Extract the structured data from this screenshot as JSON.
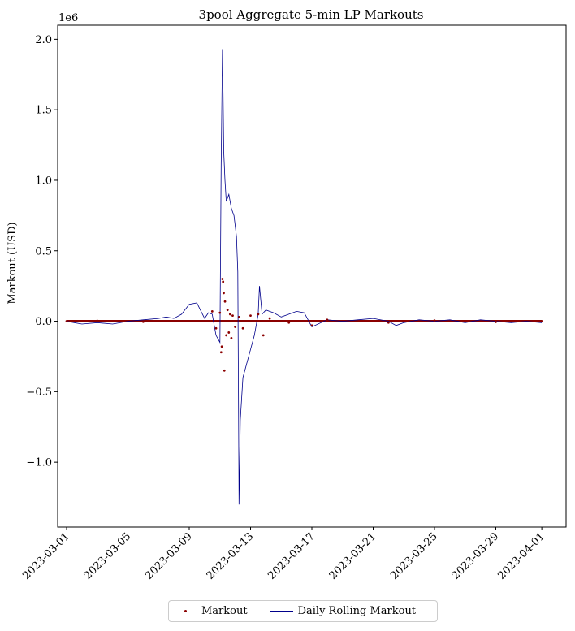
{
  "chart_data": {
    "type": "line",
    "title": "3pool Aggregate 5-min LP Markouts",
    "xlabel": "",
    "ylabel": "Markout (USD)",
    "y_offset_label": "1e6",
    "x_ticks": [
      "2023-03-01",
      "2023-03-05",
      "2023-03-09",
      "2023-03-13",
      "2023-03-17",
      "2023-03-21",
      "2023-03-25",
      "2023-03-29",
      "2023-04-01"
    ],
    "y_ticks": [
      "2.0",
      "1.5",
      "1.0",
      "0.5",
      "0.0",
      "−0.5",
      "−1.0"
    ],
    "y_tick_values": [
      2.0,
      1.5,
      1.0,
      0.5,
      0.0,
      -0.5,
      -1.0
    ],
    "xlim": [
      "2023-02-28T10:00",
      "2023-04-02T14:00"
    ],
    "ylim": [
      -1.46,
      2.1
    ],
    "legend_position": "bottom-center",
    "grid": false,
    "series": [
      {
        "name": "Markout",
        "kind": "scatter",
        "color": "#8b0000",
        "points": [
          [
            "2023-03-01T00:00",
            0.0
          ],
          [
            "2023-03-03T00:00",
            0.003
          ],
          [
            "2023-03-06T00:00",
            -0.004
          ],
          [
            "2023-03-10T12:00",
            0.07
          ],
          [
            "2023-03-10T18:00",
            -0.05
          ],
          [
            "2023-03-11T00:00",
            0.06
          ],
          [
            "2023-03-11T02:00",
            -0.22
          ],
          [
            "2023-03-11T03:00",
            -0.18
          ],
          [
            "2023-03-11T04:00",
            0.3
          ],
          [
            "2023-03-11T05:00",
            0.28
          ],
          [
            "2023-03-11T06:00",
            0.2
          ],
          [
            "2023-03-11T07:00",
            -0.35
          ],
          [
            "2023-03-11T08:00",
            0.14
          ],
          [
            "2023-03-11T10:00",
            -0.1
          ],
          [
            "2023-03-11T12:00",
            0.08
          ],
          [
            "2023-03-11T14:00",
            -0.08
          ],
          [
            "2023-03-11T16:00",
            0.05
          ],
          [
            "2023-03-11T18:00",
            -0.12
          ],
          [
            "2023-03-11T20:00",
            0.04
          ],
          [
            "2023-03-12T00:00",
            -0.04
          ],
          [
            "2023-03-12T06:00",
            0.03
          ],
          [
            "2023-03-12T12:00",
            -0.05
          ],
          [
            "2023-03-13T00:00",
            0.04
          ],
          [
            "2023-03-13T12:00",
            0.05
          ],
          [
            "2023-03-13T20:00",
            -0.1
          ],
          [
            "2023-03-14T06:00",
            0.02
          ],
          [
            "2023-03-15T12:00",
            -0.01
          ],
          [
            "2023-03-17T00:00",
            -0.03
          ],
          [
            "2023-03-18T00:00",
            0.01
          ],
          [
            "2023-03-22T00:00",
            -0.01
          ],
          [
            "2023-03-25T00:00",
            0.005
          ],
          [
            "2023-03-29T00:00",
            -0.005
          ],
          [
            "2023-04-01T00:00",
            0.0
          ]
        ]
      },
      {
        "name": "Daily Rolling Markout",
        "kind": "line",
        "color": "#00008b",
        "points": [
          [
            "2023-03-01T00:00",
            0.0
          ],
          [
            "2023-03-01T12:00",
            -0.01
          ],
          [
            "2023-03-02T00:00",
            -0.02
          ],
          [
            "2023-03-03T00:00",
            -0.01
          ],
          [
            "2023-03-04T00:00",
            -0.02
          ],
          [
            "2023-03-05T00:00",
            0.0
          ],
          [
            "2023-03-06T00:00",
            0.01
          ],
          [
            "2023-03-07T00:00",
            0.02
          ],
          [
            "2023-03-07T12:00",
            0.03
          ],
          [
            "2023-03-08T00:00",
            0.02
          ],
          [
            "2023-03-08T12:00",
            0.05
          ],
          [
            "2023-03-09T00:00",
            0.12
          ],
          [
            "2023-03-09T12:00",
            0.13
          ],
          [
            "2023-03-10T00:00",
            0.02
          ],
          [
            "2023-03-10T06:00",
            0.06
          ],
          [
            "2023-03-10T12:00",
            0.05
          ],
          [
            "2023-03-10T18:00",
            -0.1
          ],
          [
            "2023-03-11T00:00",
            -0.15
          ],
          [
            "2023-03-11T02:00",
            1.1
          ],
          [
            "2023-03-11T04:00",
            1.93
          ],
          [
            "2023-03-11T05:00",
            1.6
          ],
          [
            "2023-03-11T06:00",
            1.2
          ],
          [
            "2023-03-11T08:00",
            1.0
          ],
          [
            "2023-03-11T10:00",
            0.85
          ],
          [
            "2023-03-11T14:00",
            0.9
          ],
          [
            "2023-03-11T18:00",
            0.8
          ],
          [
            "2023-03-11T22:00",
            0.75
          ],
          [
            "2023-03-12T02:00",
            0.6
          ],
          [
            "2023-03-12T04:00",
            0.35
          ],
          [
            "2023-03-12T05:00",
            -0.5
          ],
          [
            "2023-03-12T06:00",
            -1.3
          ],
          [
            "2023-03-12T08:00",
            -0.7
          ],
          [
            "2023-03-12T12:00",
            -0.4
          ],
          [
            "2023-03-12T18:00",
            -0.3
          ],
          [
            "2023-03-13T00:00",
            -0.2
          ],
          [
            "2023-03-13T06:00",
            -0.1
          ],
          [
            "2023-03-13T12:00",
            0.05
          ],
          [
            "2023-03-13T14:00",
            0.25
          ],
          [
            "2023-03-13T18:00",
            0.05
          ],
          [
            "2023-03-14T00:00",
            0.08
          ],
          [
            "2023-03-14T12:00",
            0.06
          ],
          [
            "2023-03-15T00:00",
            0.03
          ],
          [
            "2023-03-15T12:00",
            0.05
          ],
          [
            "2023-03-16T00:00",
            0.07
          ],
          [
            "2023-03-16T12:00",
            0.06
          ],
          [
            "2023-03-17T00:00",
            -0.04
          ],
          [
            "2023-03-18T00:00",
            0.01
          ],
          [
            "2023-03-19T00:00",
            0.0
          ],
          [
            "2023-03-20T00:00",
            0.01
          ],
          [
            "2023-03-21T00:00",
            0.02
          ],
          [
            "2023-03-22T00:00",
            0.0
          ],
          [
            "2023-03-22T12:00",
            -0.03
          ],
          [
            "2023-03-23T00:00",
            -0.01
          ],
          [
            "2023-03-24T00:00",
            0.01
          ],
          [
            "2023-03-25T00:00",
            0.0
          ],
          [
            "2023-03-26T00:00",
            0.01
          ],
          [
            "2023-03-27T00:00",
            -0.01
          ],
          [
            "2023-03-28T00:00",
            0.01
          ],
          [
            "2023-03-29T00:00",
            0.0
          ],
          [
            "2023-03-30T00:00",
            -0.01
          ],
          [
            "2023-03-31T00:00",
            0.0
          ],
          [
            "2023-04-01T00:00",
            -0.01
          ]
        ]
      }
    ]
  },
  "legend": {
    "markout_label": "Markout",
    "rolling_label": "Daily Rolling Markout"
  }
}
